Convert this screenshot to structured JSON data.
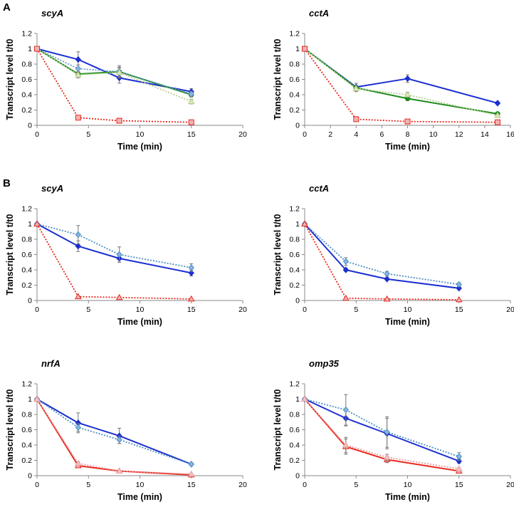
{
  "panels": [
    {
      "label": "A"
    },
    {
      "label": "B"
    }
  ],
  "chart_data": [
    {
      "type": "line",
      "panel": "A",
      "title": "scyA",
      "xlabel": "Time (min)",
      "ylabel": "Transcript level t/t0",
      "xlim": [
        0,
        20
      ],
      "ylim": [
        0,
        1.2
      ],
      "xticks": [
        0,
        5,
        10,
        15,
        20
      ],
      "yticks": [
        0,
        0.2,
        0.4,
        0.6,
        0.8,
        1,
        1.2
      ],
      "series": [
        {
          "name": "blue",
          "color": "#1c2fd0",
          "style": "solid",
          "marker": "diamond",
          "marker_fill": "#1c2fd0",
          "x": [
            0,
            4,
            8,
            15
          ],
          "y": [
            1,
            0.86,
            0.62,
            0.44
          ],
          "err": [
            0,
            0.1,
            0.07,
            0.04
          ]
        },
        {
          "name": "green",
          "color": "#1f8a1f",
          "style": "solid",
          "marker": "circle",
          "marker_fill": "#1f8a1f",
          "x": [
            0,
            4,
            8,
            15
          ],
          "y": [
            1,
            0.67,
            0.7,
            0.4
          ],
          "err": [
            0,
            0.03,
            0.08,
            0.03
          ]
        },
        {
          "name": "blue-dotted",
          "color": "#6699cc",
          "style": "dotted",
          "marker": "diamond",
          "marker_fill": "#8ab4e0",
          "x": [
            0,
            4,
            8,
            15
          ],
          "y": [
            1,
            0.74,
            0.7,
            0.41
          ],
          "err": [
            0,
            0.05,
            0.06,
            0.03
          ]
        },
        {
          "name": "light-green-dotted",
          "color": "#b7cf8a",
          "style": "dotted",
          "marker": "triangle",
          "marker_fill": "#dfe8b8",
          "x": [
            0,
            4,
            8,
            15
          ],
          "y": [
            1,
            0.66,
            0.69,
            0.31
          ],
          "err": [
            0,
            0.04,
            0.06,
            0.03
          ]
        },
        {
          "name": "red",
          "color": "#e8281e",
          "style": "dotted",
          "marker": "square",
          "marker_fill": "#f2b3b3",
          "x": [
            0,
            4,
            8,
            15
          ],
          "y": [
            1,
            0.1,
            0.06,
            0.04
          ],
          "err": [
            0,
            0.01,
            0.01,
            0.005
          ]
        }
      ]
    },
    {
      "type": "line",
      "panel": "A",
      "title": "cctA",
      "xlabel": "Time (min)",
      "ylabel": "Transcript level t/t0",
      "xlim": [
        0,
        16
      ],
      "ylim": [
        0,
        1.2
      ],
      "xticks": [
        0,
        2,
        4,
        6,
        8,
        10,
        12,
        14,
        16
      ],
      "yticks": [
        0,
        0.2,
        0.4,
        0.6,
        0.8,
        1,
        1.2
      ],
      "series": [
        {
          "name": "blue",
          "color": "#1c2fd0",
          "style": "solid",
          "marker": "diamond",
          "marker_fill": "#1c2fd0",
          "x": [
            0,
            4,
            8,
            15
          ],
          "y": [
            1,
            0.5,
            0.61,
            0.29
          ],
          "err": [
            0,
            0.05,
            0.05,
            0.02
          ]
        },
        {
          "name": "green",
          "color": "#1f8a1f",
          "style": "solid",
          "marker": "circle",
          "marker_fill": "#1f8a1f",
          "x": [
            0,
            4,
            8,
            15
          ],
          "y": [
            1,
            0.49,
            0.35,
            0.15
          ],
          "err": [
            0,
            0.03,
            0.02,
            0.01
          ]
        },
        {
          "name": "light-green-dotted",
          "color": "#b7cf8a",
          "style": "dotted",
          "marker": "triangle",
          "marker_fill": "#dfe8b8",
          "x": [
            0,
            4,
            8,
            15
          ],
          "y": [
            1,
            0.48,
            0.4,
            0.13
          ],
          "err": [
            0,
            0.04,
            0.03,
            0.01
          ]
        },
        {
          "name": "red",
          "color": "#e8281e",
          "style": "dotted",
          "marker": "square",
          "marker_fill": "#f2b3b3",
          "x": [
            0,
            4,
            8,
            15
          ],
          "y": [
            1,
            0.08,
            0.05,
            0.04
          ],
          "err": [
            0,
            0.01,
            0.005,
            0.005
          ]
        }
      ]
    },
    {
      "type": "line",
      "panel": "B",
      "title": "scyA",
      "xlabel": "Time (min)",
      "ylabel": "Transcript level t/t0",
      "xlim": [
        0,
        20
      ],
      "ylim": [
        0,
        1.2
      ],
      "xticks": [
        0,
        5,
        10,
        15,
        20
      ],
      "yticks": [
        0,
        0.2,
        0.4,
        0.6,
        0.8,
        1,
        1.2
      ],
      "series": [
        {
          "name": "blue",
          "color": "#1c2fd0",
          "style": "solid",
          "marker": "diamond",
          "marker_fill": "#1c2fd0",
          "x": [
            0,
            4,
            8,
            15
          ],
          "y": [
            1,
            0.71,
            0.55,
            0.36
          ],
          "err": [
            0,
            0.07,
            0.05,
            0.04
          ]
        },
        {
          "name": "blue-dotted",
          "color": "#4b8fc4",
          "style": "dotted",
          "marker": "diamond",
          "marker_fill": "#8ab4e0",
          "x": [
            0,
            4,
            8,
            15
          ],
          "y": [
            1,
            0.86,
            0.6,
            0.43
          ],
          "err": [
            0,
            0.12,
            0.1,
            0.05
          ]
        },
        {
          "name": "red",
          "color": "#e8281e",
          "style": "dotted",
          "marker": "triangle",
          "marker_fill": "#f2b3b3",
          "x": [
            0,
            4,
            8,
            15
          ],
          "y": [
            1,
            0.05,
            0.04,
            0.02
          ],
          "err": [
            0,
            0.01,
            0.005,
            0.005
          ]
        }
      ]
    },
    {
      "type": "line",
      "panel": "B",
      "title": "cctA",
      "xlabel": "Time (min)",
      "ylabel": "Transcript level t/t0",
      "xlim": [
        0,
        20
      ],
      "ylim": [
        0,
        1.2
      ],
      "xticks": [
        0,
        5,
        10,
        15,
        20
      ],
      "yticks": [
        0,
        0.2,
        0.4,
        0.6,
        0.8,
        1,
        1.2
      ],
      "series": [
        {
          "name": "blue",
          "color": "#1c2fd0",
          "style": "solid",
          "marker": "diamond",
          "marker_fill": "#1c2fd0",
          "x": [
            0,
            4,
            8,
            15
          ],
          "y": [
            1,
            0.4,
            0.28,
            0.16
          ],
          "err": [
            0,
            0.02,
            0.02,
            0.01
          ]
        },
        {
          "name": "blue-dotted",
          "color": "#4b8fc4",
          "style": "dotted",
          "marker": "diamond",
          "marker_fill": "#8ab4e0",
          "x": [
            0,
            4,
            8,
            15
          ],
          "y": [
            1,
            0.51,
            0.35,
            0.21
          ],
          "err": [
            0,
            0.05,
            0.03,
            0.02
          ]
        },
        {
          "name": "red",
          "color": "#e8281e",
          "style": "dotted",
          "marker": "triangle",
          "marker_fill": "#f2b3b3",
          "x": [
            0,
            4,
            8,
            15
          ],
          "y": [
            1,
            0.03,
            0.02,
            0.01
          ],
          "err": [
            0,
            0.005,
            0.005,
            0.005
          ]
        }
      ]
    },
    {
      "type": "line",
      "panel": "B",
      "title": "nrfA",
      "xlabel": "Time (min)",
      "ylabel": "Transcript level t/t0",
      "xlim": [
        0,
        20
      ],
      "ylim": [
        0,
        1.2
      ],
      "xticks": [
        0,
        5,
        10,
        15,
        20
      ],
      "yticks": [
        0,
        0.2,
        0.4,
        0.6,
        0.8,
        1,
        1.2
      ],
      "series": [
        {
          "name": "blue",
          "color": "#1c2fd0",
          "style": "solid",
          "marker": "diamond",
          "marker_fill": "#1c2fd0",
          "x": [
            0,
            4,
            8,
            15
          ],
          "y": [
            1,
            0.69,
            0.52,
            0.15
          ],
          "err": [
            0,
            0.13,
            0.1,
            0.01
          ]
        },
        {
          "name": "blue-dotted",
          "color": "#4b8fc4",
          "style": "dotted",
          "marker": "diamond",
          "marker_fill": "#8ab4e0",
          "x": [
            0,
            4,
            8,
            15
          ],
          "y": [
            1,
            0.63,
            0.47,
            0.15
          ],
          "err": [
            0,
            0.05,
            0.05,
            0.01
          ]
        },
        {
          "name": "red",
          "color": "#e8281e",
          "style": "solid",
          "marker": "triangle",
          "marker_fill": "#f2b3b3",
          "x": [
            0,
            4,
            8,
            15
          ],
          "y": [
            1,
            0.13,
            0.06,
            0.01
          ],
          "err": [
            0,
            0.02,
            0.005,
            0.005
          ]
        },
        {
          "name": "pink-dotted",
          "color": "#e79a9a",
          "style": "dotted",
          "marker": "triangle",
          "marker_fill": "#f2c4c4",
          "x": [
            0,
            4,
            8,
            15
          ],
          "y": [
            1,
            0.16,
            0.06,
            0.02
          ],
          "err": [
            0,
            0.02,
            0.005,
            0.005
          ]
        }
      ]
    },
    {
      "type": "line",
      "panel": "B",
      "title": "omp35",
      "xlabel": "Time (min)",
      "ylabel": "Transcript level t/t0",
      "xlim": [
        0,
        20
      ],
      "ylim": [
        0,
        1.2
      ],
      "xticks": [
        0,
        5,
        10,
        15,
        20
      ],
      "yticks": [
        0,
        0.2,
        0.4,
        0.6,
        0.8,
        1,
        1.2
      ],
      "series": [
        {
          "name": "blue",
          "color": "#1c2fd0",
          "style": "solid",
          "marker": "diamond",
          "marker_fill": "#1c2fd0",
          "x": [
            0,
            4,
            8,
            15
          ],
          "y": [
            1,
            0.75,
            0.55,
            0.19
          ],
          "err": [
            0,
            0.1,
            0.2,
            0.03
          ]
        },
        {
          "name": "blue-dotted",
          "color": "#4b8fc4",
          "style": "dotted",
          "marker": "diamond",
          "marker_fill": "#8ab4e0",
          "x": [
            0,
            4,
            8,
            15
          ],
          "y": [
            1,
            0.86,
            0.57,
            0.25
          ],
          "err": [
            0,
            0.2,
            0.2,
            0.05
          ]
        },
        {
          "name": "red",
          "color": "#e8281e",
          "style": "solid",
          "marker": "triangle",
          "marker_fill": "#f2b3b3",
          "x": [
            0,
            4,
            8,
            15
          ],
          "y": [
            1,
            0.38,
            0.21,
            0.06
          ],
          "err": [
            0,
            0.1,
            0.04,
            0.01
          ]
        },
        {
          "name": "pink-dotted",
          "color": "#e79a9a",
          "style": "dotted",
          "marker": "triangle",
          "marker_fill": "#f2c4c4",
          "x": [
            0,
            4,
            8,
            15
          ],
          "y": [
            1,
            0.4,
            0.24,
            0.09
          ],
          "err": [
            0,
            0.1,
            0.04,
            0.01
          ]
        }
      ]
    }
  ]
}
